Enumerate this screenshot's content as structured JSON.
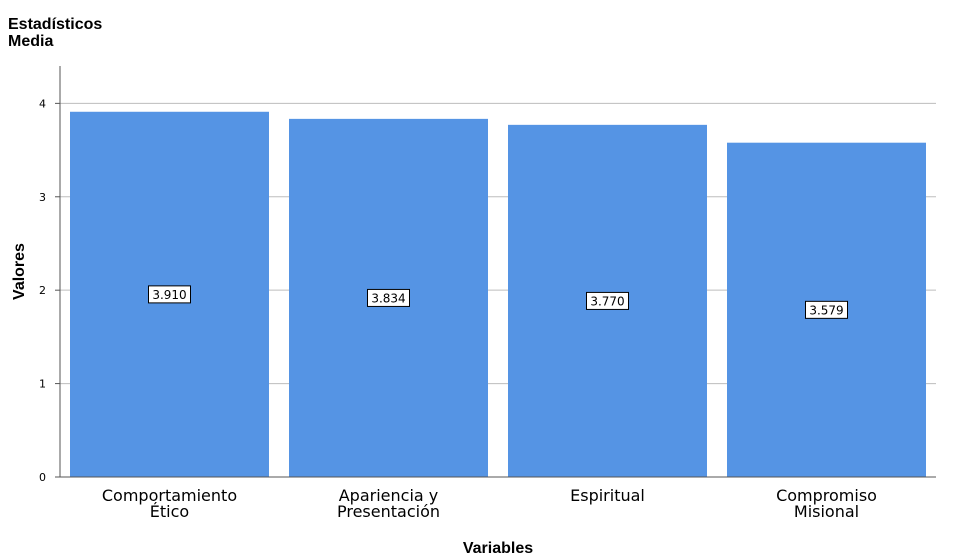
{
  "chart_data": {
    "type": "bar",
    "title": "Estadísticos",
    "subtitle": "Media",
    "xlabel": "Variables",
    "ylabel": "Valores",
    "categories": [
      [
        "Comportamiento",
        "Ético"
      ],
      [
        "Apariencia y",
        "Presentación"
      ],
      [
        "Espiritual"
      ],
      [
        "Compromiso",
        "Misional"
      ]
    ],
    "values": [
      3.91,
      3.834,
      3.77,
      3.579
    ],
    "data_labels": [
      "3.910",
      "3.834",
      "3.770",
      "3.579"
    ],
    "ylim": [
      0,
      4.4
    ],
    "yticks": [
      0,
      1,
      2,
      3,
      4
    ],
    "grid": true,
    "legend": "none",
    "colors": {
      "bar": "#5594e4"
    }
  }
}
